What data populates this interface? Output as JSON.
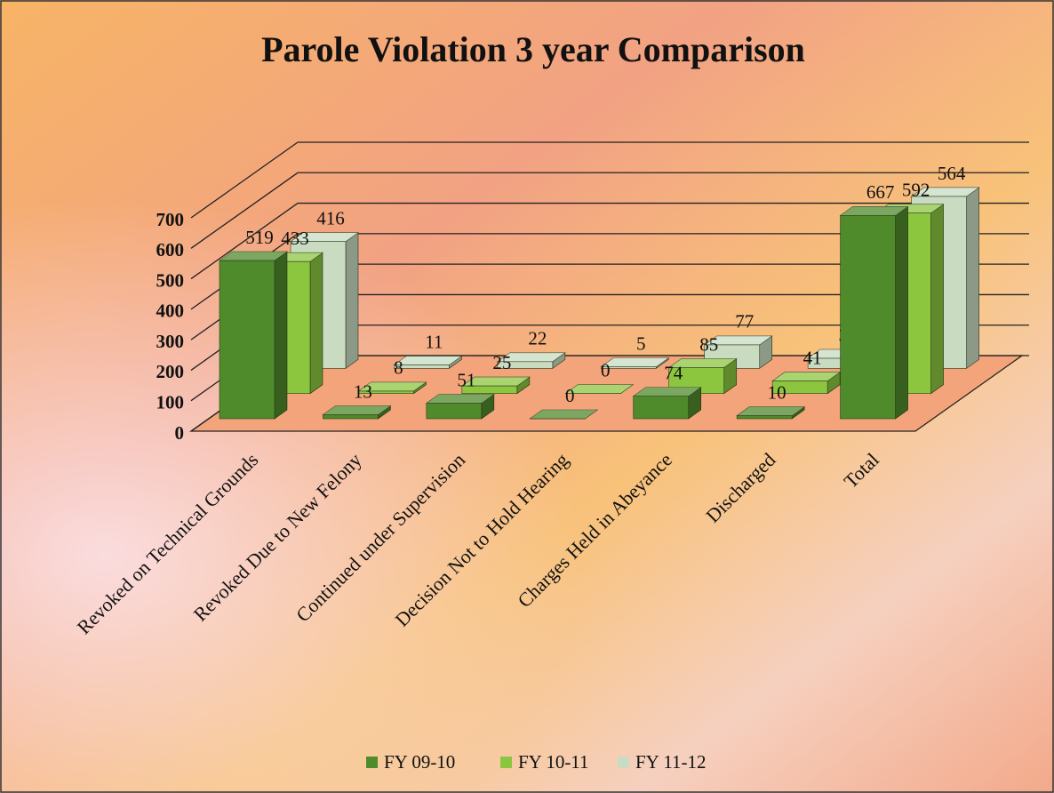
{
  "chart_data": {
    "type": "bar3d",
    "title": "Parole Violation 3 year Comparison",
    "categories": [
      "Revoked on Technical Grounds",
      "Revoked Due to New Felony",
      "Continued under Supervision",
      "Decision Not to Hold Hearing",
      "Charges Held in Abeyance",
      "Discharged",
      "Total"
    ],
    "series": [
      {
        "name": "FY 09-10",
        "color": "#4f8a2b",
        "values": [
          519,
          13,
          51,
          0,
          74,
          10,
          667
        ]
      },
      {
        "name": "FY 10-11",
        "color": "#8cc63f",
        "values": [
          433,
          8,
          25,
          0,
          85,
          41,
          592
        ]
      },
      {
        "name": "FY 11-12",
        "color": "#c9dcc2",
        "values": [
          416,
          11,
          22,
          5,
          77,
          33,
          564
        ]
      }
    ],
    "ylim": [
      0,
      700
    ],
    "yticks": [
      0,
      100,
      200,
      300,
      400,
      500,
      600,
      700
    ],
    "grid": true,
    "legend": "bottom"
  }
}
